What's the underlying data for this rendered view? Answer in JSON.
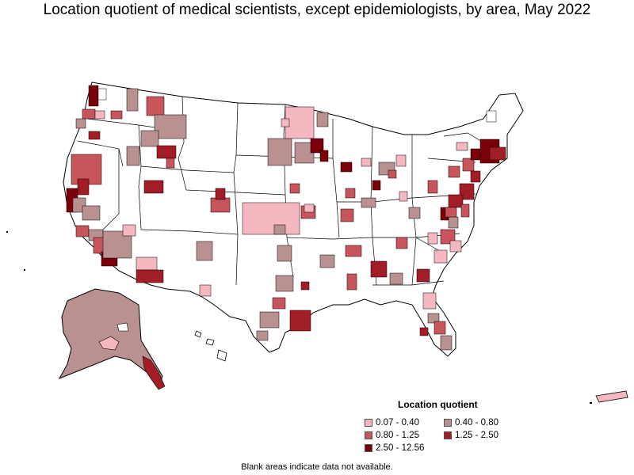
{
  "title": "Location quotient of medical scientists, except epidemiologists, by area, May 2022",
  "legend": {
    "title": "Location quotient",
    "items": [
      {
        "label": "0.07 - 0.40",
        "color": "#f6b8c0"
      },
      {
        "label": "0.40 - 0.80",
        "color": "#b99191"
      },
      {
        "label": "0.80 - 1.25",
        "color": "#c8545c"
      },
      {
        "label": "1.25 - 2.50",
        "color": "#a31d26"
      },
      {
        "label": "2.50 - 12.56",
        "color": "#7a0009"
      }
    ]
  },
  "note": "Blank areas indicate data not available.",
  "colors": {
    "none": "#ffffff",
    "c1": "#f6b8c0",
    "c2": "#b99191",
    "c3": "#c8545c",
    "c4": "#a31d26",
    "c5": "#7a0009",
    "border": "#000000"
  }
}
